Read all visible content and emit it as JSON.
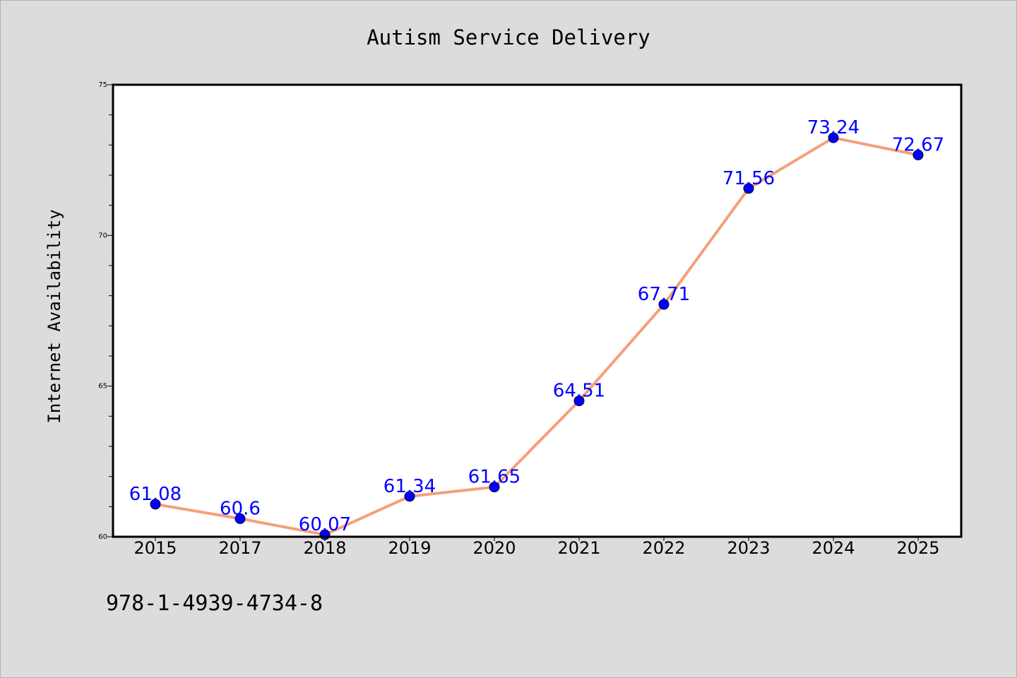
{
  "chart_data": {
    "type": "line",
    "title": "Autism Service Delivery",
    "xlabel": "",
    "ylabel": "Internet Availability",
    "categories": [
      "2015",
      "2017",
      "2018",
      "2019",
      "2020",
      "2021",
      "2022",
      "2023",
      "2024",
      "2025"
    ],
    "series": [
      {
        "values": [
          61.08,
          60.6,
          60.07,
          61.34,
          61.65,
          64.51,
          67.71,
          71.56,
          73.24,
          72.67
        ],
        "labels": [
          "61.08",
          "60.6",
          "60.07",
          "61.34",
          "61.65",
          "64.51",
          "67.71",
          "71.56",
          "73.24",
          "72.67"
        ]
      }
    ],
    "ylim": [
      60,
      75
    ],
    "yticks": [
      "60",
      "65",
      "70",
      "75"
    ],
    "grid": false,
    "legend": "none",
    "colors": {
      "background": "#dcdcdc",
      "plot_background": "#ffffff",
      "line": "#f4a07a",
      "marker": "#0000ff",
      "label": "#0000ff"
    }
  },
  "footer": {
    "isbn": "978-1-4939-4734-8"
  }
}
